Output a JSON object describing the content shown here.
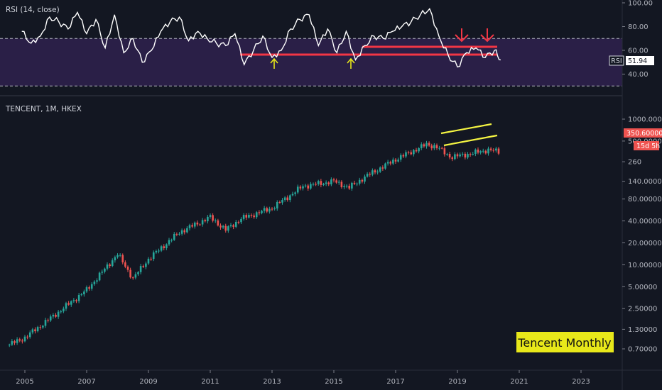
{
  "rsi_panel": {
    "title": "RSI (14, close)",
    "axis_labels": [
      "100.00",
      "80.00",
      "60.00",
      "40.00"
    ],
    "badge_label": "RSI",
    "current_value": "51.94",
    "overbought_level": 70,
    "oversold_level": 30,
    "band_color": "#2a1f47",
    "line_color": "#ffffff"
  },
  "price_panel": {
    "title": "TENCENT, 1M, HKEX",
    "axis_labels": [
      "1000.00000",
      "500.00000",
      "260",
      "140.00000",
      "80.00000",
      "40.00000",
      "20.00000",
      "10.00000",
      "5.00000",
      "2.50000",
      "1.30000",
      "0.70000"
    ],
    "last_price_label": "350.60000",
    "countdown_label": "15d 5h",
    "up_color": "#26a69a",
    "down_color": "#ef5350",
    "annotation": "Tencent Monthly"
  },
  "time_axis": {
    "labels": [
      "2005",
      "2007",
      "2009",
      "2011",
      "2013",
      "2015",
      "2017",
      "2019",
      "2021",
      "2023"
    ]
  },
  "chart_data": [
    {
      "type": "line",
      "title": "RSI (14, close)",
      "x": [
        2004.9,
        2005.2,
        2005.5,
        2005.8,
        2006.1,
        2006.4,
        2006.7,
        2007.0,
        2007.3,
        2007.6,
        2007.9,
        2008.2,
        2008.5,
        2008.8,
        2009.1,
        2009.4,
        2009.7,
        2010.0,
        2010.3,
        2010.6,
        2010.9,
        2011.2,
        2011.5,
        2011.8,
        2012.1,
        2012.4,
        2012.7,
        2013.0,
        2013.3,
        2013.6,
        2013.9,
        2014.2,
        2014.5,
        2014.8,
        2015.1,
        2015.4,
        2015.7,
        2016.0,
        2016.3,
        2016.6,
        2016.9,
        2017.2,
        2017.5,
        2017.8,
        2018.1,
        2018.4,
        2018.7,
        2019.0,
        2019.3,
        2019.6,
        2019.9,
        2020.2,
        2020.4
      ],
      "y": [
        76,
        66,
        72,
        88,
        84,
        78,
        92,
        74,
        86,
        62,
        90,
        58,
        70,
        50,
        60,
        76,
        84,
        88,
        68,
        76,
        70,
        66,
        64,
        74,
        48,
        60,
        72,
        54,
        60,
        78,
        86,
        90,
        64,
        78,
        58,
        76,
        52,
        64,
        72,
        70,
        76,
        80,
        84,
        90,
        95,
        72,
        56,
        46,
        58,
        62,
        54,
        60,
        52
      ],
      "ylim": [
        20,
        100
      ],
      "hlines": [
        70,
        30
      ]
    },
    {
      "type": "candlestick",
      "title": "TENCENT, 1M, HKEX",
      "scale": "log",
      "x": [
        2004.5,
        2005,
        2006,
        2007,
        2008,
        2008.5,
        2009,
        2010,
        2011,
        2011.5,
        2012,
        2013,
        2014,
        2015,
        2015.5,
        2016,
        2017,
        2018.0,
        2018.3,
        2018.8,
        2019.5,
        2020.0,
        2020.4
      ],
      "close": [
        0.8,
        1.0,
        2.1,
        4.5,
        14,
        6.5,
        12,
        28,
        45,
        30,
        43,
        60,
        120,
        140,
        115,
        160,
        280,
        450,
        420,
        300,
        340,
        380,
        350.6
      ],
      "ylim": [
        0.5,
        1000
      ],
      "last_price": 350.6
    }
  ]
}
